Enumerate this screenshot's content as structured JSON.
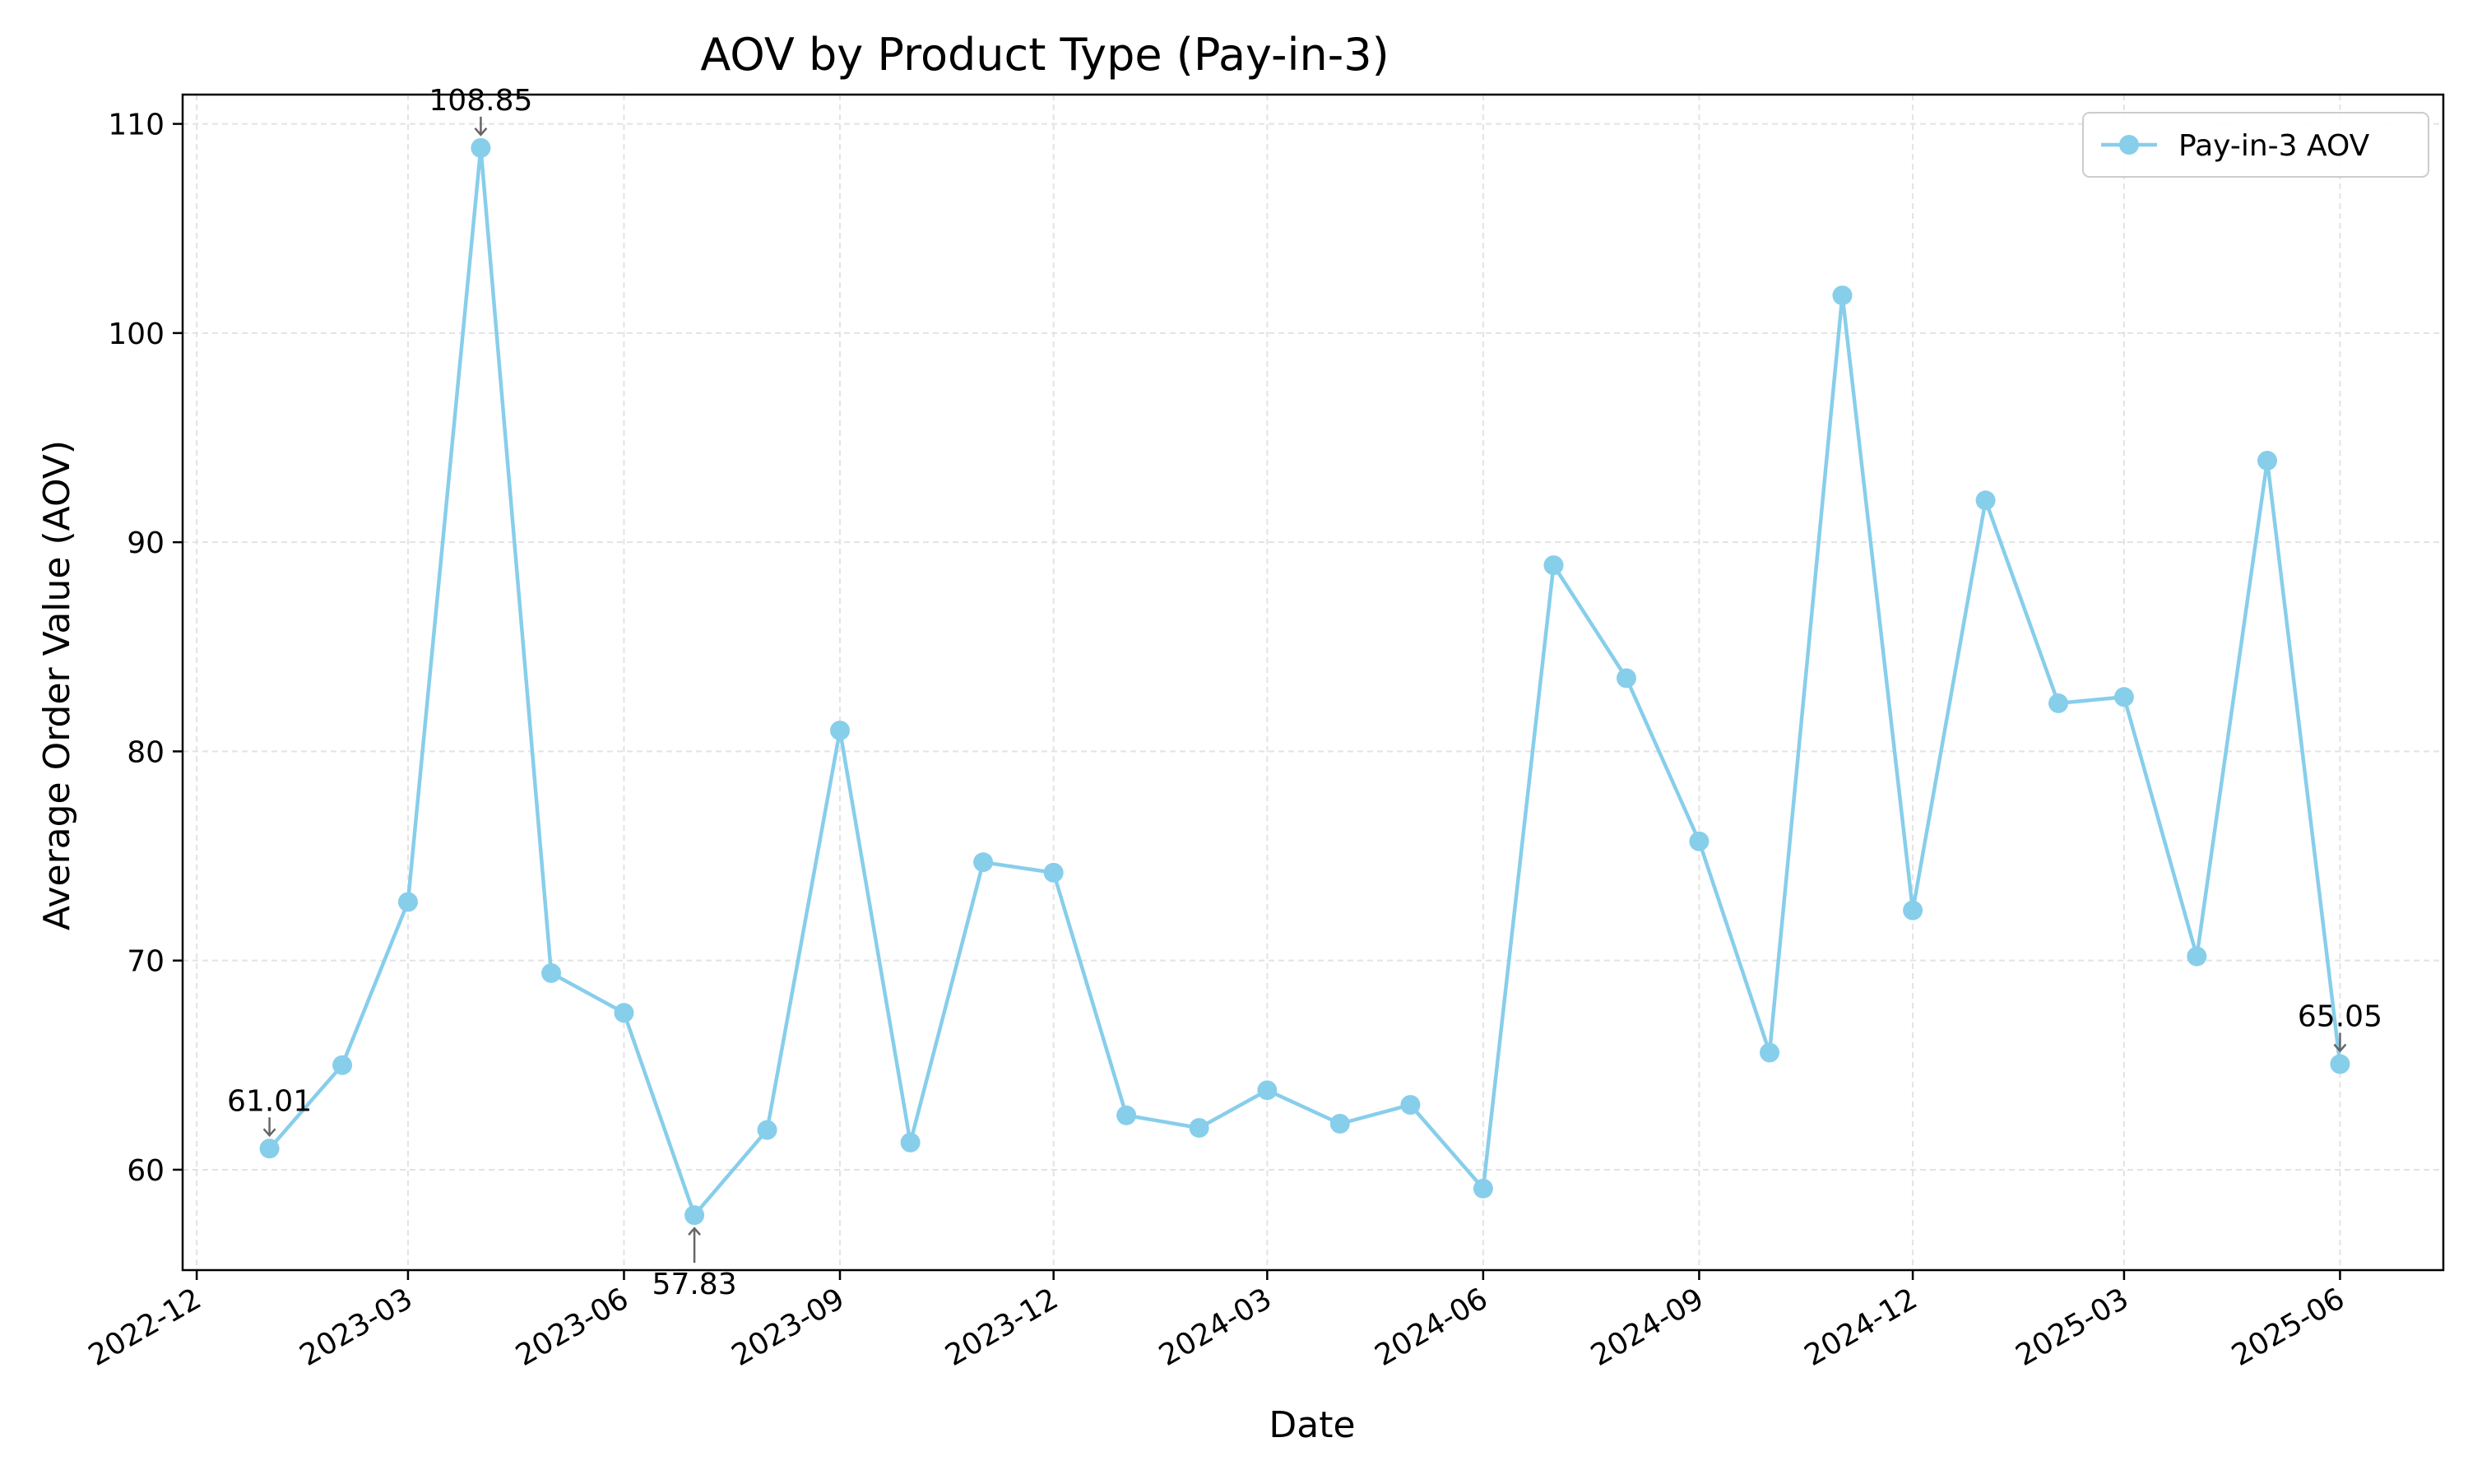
{
  "chart_data": {
    "type": "line",
    "title": "AOV by Product Type (Pay-in-3)",
    "xlabel": "Date",
    "ylabel": "Average Order Value (AOV)",
    "xlim": [
      "2022-11-25",
      "2025-07-15"
    ],
    "ylim": [
      55.2,
      111.4
    ],
    "grid": true,
    "legend_position": "top-right",
    "x_tick_labels": [
      "2022-12",
      "2023-03",
      "2023-06",
      "2023-09",
      "2023-12",
      "2024-03",
      "2024-06",
      "2024-09",
      "2024-12",
      "2025-03",
      "2025-06"
    ],
    "y_ticks": [
      60,
      70,
      80,
      90,
      100,
      110
    ],
    "series": [
      {
        "name": "Pay-in-3 AOV",
        "color": "#87ceeb",
        "x": [
          "2023-01-01",
          "2023-02-01",
          "2023-03-01",
          "2023-04-01",
          "2023-05-01",
          "2023-06-01",
          "2023-07-01",
          "2023-08-01",
          "2023-09-01",
          "2023-10-01",
          "2023-11-01",
          "2023-12-01",
          "2024-01-01",
          "2024-02-01",
          "2024-03-01",
          "2024-04-01",
          "2024-05-01",
          "2024-06-01",
          "2024-07-01",
          "2024-08-01",
          "2024-09-01",
          "2024-10-01",
          "2024-11-01",
          "2024-12-01",
          "2025-01-01",
          "2025-02-01",
          "2025-03-01",
          "2025-04-01",
          "2025-05-01",
          "2025-06-01"
        ],
        "y": [
          61.01,
          65.0,
          72.8,
          108.85,
          69.4,
          67.5,
          57.83,
          61.9,
          81.0,
          61.3,
          74.7,
          74.2,
          62.6,
          62.0,
          63.8,
          62.2,
          63.1,
          59.1,
          88.9,
          83.5,
          75.7,
          65.6,
          101.8,
          72.4,
          92.0,
          82.3,
          82.6,
          70.2,
          93.9,
          65.05
        ]
      }
    ],
    "annotations": [
      {
        "x": "2023-01-01",
        "y": 61.01,
        "text": "61.01",
        "placement": "above"
      },
      {
        "x": "2023-04-01",
        "y": 108.85,
        "text": "108.85",
        "placement": "above"
      },
      {
        "x": "2023-07-01",
        "y": 57.83,
        "text": "57.83",
        "placement": "below"
      },
      {
        "x": "2025-06-01",
        "y": 65.05,
        "text": "65.05",
        "placement": "above"
      }
    ]
  }
}
